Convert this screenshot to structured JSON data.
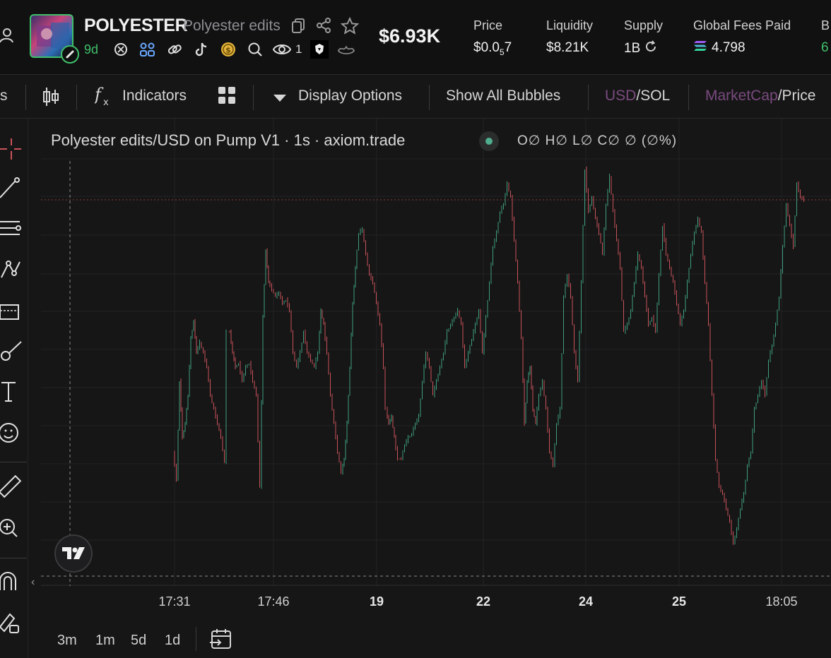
{
  "header": {
    "ticker": "POLYESTER",
    "token_name": "Polyester edits",
    "age": "9d",
    "views_count": "1",
    "market_cap": "$6.93K",
    "stats": [
      {
        "label": "Price",
        "value_main": "$0.0",
        "value_sub": "5",
        "value_tail": "7"
      },
      {
        "label": "Liquidity",
        "value": "$8.21K"
      },
      {
        "label": "Supply",
        "value": "1B"
      },
      {
        "label": "Global Fees Paid",
        "value": "4.798"
      },
      {
        "label": "B",
        "value": "6"
      }
    ],
    "icons": [
      "copy-icon",
      "share-icon",
      "star-icon",
      "refresh-icon",
      "solana-icon"
    ],
    "social_icons": [
      "x-search-icon",
      "community-icon",
      "link-icon",
      "tiktok-icon",
      "coin-icon",
      "search-icon",
      "eye-icon",
      "pump-icon",
      "bonk-icon"
    ]
  },
  "toolbar": {
    "left_cut": "s",
    "indicators": "Indicators",
    "display_options": "Display Options",
    "show_all_bubbles": "Show All Bubbles",
    "currency_usd": "USD",
    "currency_sep": "/",
    "currency_sol": "SOL",
    "metric_mcap": "MarketCap",
    "metric_sep": "/",
    "metric_price": "Price"
  },
  "chart": {
    "legend_title": "Polyester edits/USD on Pump V1 · 1s · axiom.trade",
    "ohlc": "O∅ H∅ L∅ C∅ ∅ (∅%)",
    "x_ticks": [
      {
        "label": "17:31",
        "bold": false
      },
      {
        "label": "17:46",
        "bold": false
      },
      {
        "label": "19",
        "bold": true
      },
      {
        "label": "22",
        "bold": true
      },
      {
        "label": "24",
        "bold": true
      },
      {
        "label": "25",
        "bold": true
      },
      {
        "label": "18:05",
        "bold": false
      }
    ],
    "up_color": "#3f9e7f",
    "down_color": "#c9535a"
  },
  "ranges": [
    "3m",
    "1m",
    "5d",
    "1d"
  ]
}
